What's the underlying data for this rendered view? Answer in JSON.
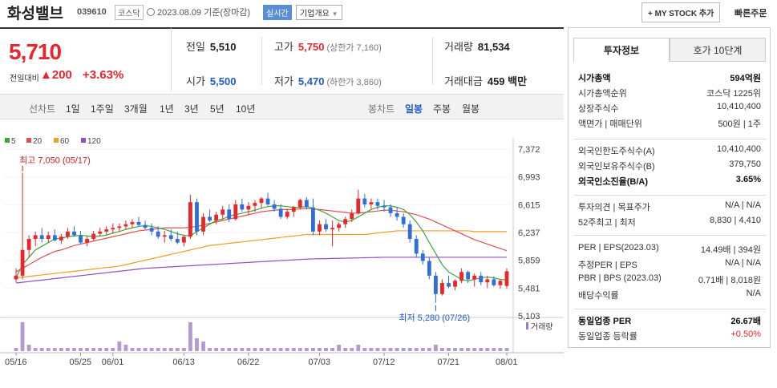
{
  "header": {
    "name": "화성밸브",
    "code": "039610",
    "market": "코스닥",
    "date_text": "2023.08.09 기준(장마감)",
    "realtime": "실시간",
    "overview": "기업개요",
    "mystock": "+ MY STOCK 추가",
    "fast_order": "빠른주문"
  },
  "price": {
    "current": "5,710",
    "change_label": "전일대비",
    "change": "▲200",
    "change_pct": "+3.63%"
  },
  "stats": {
    "prev_label": "전일",
    "prev": "5,510",
    "high_label": "고가",
    "high": "5,750",
    "high_limit": "(상한가 7,160)",
    "volume_label": "거래량",
    "volume": "81,534",
    "open_label": "시가",
    "open": "5,500",
    "low_label": "저가",
    "low": "5,470",
    "low_limit": "(하한가 3,860)",
    "amount_label": "거래대금",
    "amount": "459 백만"
  },
  "toolbar": {
    "line_chart": "선차트",
    "ranges": [
      "1일",
      "1주일",
      "3개월",
      "1년",
      "3년",
      "5년",
      "10년"
    ],
    "candle_chart": "봉차트",
    "periods": [
      "일봉",
      "주봉",
      "월봉"
    ]
  },
  "chart_data": {
    "type": "candlestick",
    "legend": [
      "5",
      "20",
      "60",
      "120"
    ],
    "legend_colors": [
      "#38a838",
      "#e05050",
      "#f0a020",
      "#9050c0"
    ],
    "y_ticks": [
      "7,372",
      "6,993",
      "6,615",
      "6,237",
      "5,859",
      "5,481",
      "5,103"
    ],
    "ylim": [
      5103,
      7372
    ],
    "x_ticks": [
      "05/16",
      "05/25",
      "06/01",
      "06/13",
      "06/22",
      "07/03",
      "07/12",
      "07/21",
      "08/01"
    ],
    "high_annotation": "최고 7,050 (05/17)",
    "low_annotation": "최저 5,280 (07/26)",
    "volume_label": "거래량",
    "candles": [
      [
        5600,
        5750,
        5560,
        5650
      ],
      [
        5650,
        7050,
        5600,
        6000
      ],
      [
        6000,
        6200,
        5900,
        6150
      ],
      [
        6150,
        6250,
        6050,
        6200
      ],
      [
        6200,
        6300,
        6100,
        6150
      ],
      [
        6150,
        6250,
        6100,
        6200
      ],
      [
        6200,
        6280,
        6120,
        6130
      ],
      [
        6130,
        6220,
        6080,
        6180
      ],
      [
        6180,
        6300,
        6150,
        6250
      ],
      [
        6250,
        6320,
        6180,
        6200
      ],
      [
        6200,
        6260,
        6080,
        6100
      ],
      [
        6100,
        6180,
        6050,
        6150
      ],
      [
        6150,
        6260,
        6120,
        6220
      ],
      [
        6220,
        6300,
        6180,
        6250
      ],
      [
        6250,
        6320,
        6200,
        6280
      ],
      [
        6280,
        6360,
        6220,
        6300
      ],
      [
        6300,
        6360,
        6250,
        6320
      ],
      [
        6320,
        6400,
        6280,
        6350
      ],
      [
        6350,
        6420,
        6300,
        6380
      ],
      [
        6380,
        6450,
        6320,
        6340
      ],
      [
        6340,
        6400,
        6280,
        6300
      ],
      [
        6300,
        6360,
        6200,
        6250
      ],
      [
        6250,
        6320,
        6150,
        6180
      ],
      [
        6180,
        6260,
        6100,
        6200
      ],
      [
        6200,
        6280,
        6120,
        6150
      ],
      [
        6150,
        6250,
        6080,
        6100
      ],
      [
        6100,
        6200,
        6050,
        6180
      ],
      [
        6180,
        6750,
        6150,
        6650
      ],
      [
        6650,
        6700,
        6200,
        6250
      ],
      [
        6250,
        6500,
        6200,
        6450
      ],
      [
        6450,
        6550,
        6380,
        6400
      ],
      [
        6400,
        6520,
        6350,
        6480
      ],
      [
        6480,
        6600,
        6420,
        6550
      ],
      [
        6550,
        6620,
        6380,
        6420
      ],
      [
        6420,
        6680,
        6400,
        6620
      ],
      [
        6620,
        6700,
        6520,
        6550
      ],
      [
        6550,
        6650,
        6480,
        6600
      ],
      [
        6600,
        6680,
        6520,
        6640
      ],
      [
        6640,
        6720,
        6560,
        6700
      ],
      [
        6700,
        6780,
        6600,
        6620
      ],
      [
        6620,
        6680,
        6520,
        6560
      ],
      [
        6560,
        6620,
        6420,
        6450
      ],
      [
        6450,
        6560,
        6420,
        6520
      ],
      [
        6520,
        6600,
        6450,
        6580
      ],
      [
        6580,
        6700,
        6550,
        6680
      ],
      [
        6680,
        6720,
        6550,
        6580
      ],
      [
        6580,
        6700,
        6200,
        6250
      ],
      [
        6250,
        6400,
        6200,
        6350
      ],
      [
        6350,
        6420,
        6250,
        6280
      ],
      [
        6280,
        6400,
        6050,
        6300
      ],
      [
        6300,
        6380,
        6250,
        6350
      ],
      [
        6350,
        6450,
        6300,
        6420
      ],
      [
        6420,
        6550,
        6380,
        6500
      ],
      [
        6500,
        6820,
        6480,
        6700
      ],
      [
        6700,
        6760,
        6580,
        6620
      ],
      [
        6620,
        6700,
        6560,
        6650
      ],
      [
        6650,
        6700,
        6550,
        6600
      ],
      [
        6600,
        6680,
        6520,
        6580
      ],
      [
        6580,
        6620,
        6450,
        6500
      ],
      [
        6500,
        6580,
        6400,
        6450
      ],
      [
        6450,
        6500,
        6300,
        6350
      ],
      [
        6350,
        6400,
        6100,
        6150
      ],
      [
        6150,
        6200,
        5900,
        5950
      ],
      [
        5950,
        6000,
        5800,
        5850
      ],
      [
        5850,
        5900,
        5600,
        5650
      ],
      [
        5650,
        5700,
        5280,
        5400
      ],
      [
        5400,
        5600,
        5380,
        5550
      ],
      [
        5550,
        5650,
        5480,
        5500
      ],
      [
        5500,
        5600,
        5450,
        5580
      ],
      [
        5580,
        5750,
        5550,
        5700
      ],
      [
        5700,
        5720,
        5550,
        5600
      ],
      [
        5600,
        5680,
        5500,
        5650
      ],
      [
        5650,
        5700,
        5520,
        5560
      ],
      [
        5560,
        5650,
        5480,
        5600
      ],
      [
        5600,
        5640,
        5500,
        5520
      ],
      [
        5520,
        5600,
        5470,
        5580
      ],
      [
        5510,
        5750,
        5470,
        5710
      ]
    ],
    "ma": {
      "5": [
        5620,
        5800,
        5900,
        6000,
        6050,
        6100,
        6150,
        6160,
        6180,
        6190,
        6200,
        6190,
        6180,
        6190,
        6200,
        6230,
        6250,
        6280,
        6300,
        6320,
        6330,
        6320,
        6300,
        6280,
        6250,
        6220,
        6200,
        6190,
        6250,
        6300,
        6350,
        6400,
        6420,
        6460,
        6480,
        6500,
        6520,
        6540,
        6570,
        6590,
        6600,
        6600,
        6590,
        6580,
        6580,
        6590,
        6570,
        6540,
        6500,
        6450,
        6400,
        6380,
        6400,
        6450,
        6500,
        6550,
        6580,
        6600,
        6600,
        6580,
        6550,
        6480,
        6380,
        6260,
        6100,
        5950,
        5800,
        5700,
        5650,
        5600,
        5580,
        5600,
        5620,
        5630,
        5620,
        5600,
        5590
      ],
      "20": [
        5700,
        5750,
        5800,
        5850,
        5900,
        5940,
        5980,
        6000,
        6030,
        6060,
        6080,
        6100,
        6120,
        6140,
        6160,
        6180,
        6200,
        6220,
        6240,
        6260,
        6270,
        6280,
        6290,
        6300,
        6300,
        6300,
        6300,
        6310,
        6320,
        6340,
        6360,
        6380,
        6400,
        6420,
        6440,
        6460,
        6480,
        6500,
        6520,
        6530,
        6540,
        6550,
        6550,
        6550,
        6560,
        6560,
        6560,
        6550,
        6540,
        6530,
        6520,
        6510,
        6500,
        6500,
        6510,
        6520,
        6530,
        6540,
        6540,
        6530,
        6520,
        6500,
        6480,
        6450,
        6420,
        6380,
        6340,
        6300,
        6260,
        6220,
        6180,
        6140,
        6110,
        6080,
        6050,
        6020,
        5990
      ],
      "60": [
        5620,
        5630,
        5640,
        5650,
        5660,
        5670,
        5680,
        5690,
        5700,
        5710,
        5720,
        5730,
        5740,
        5750,
        5760,
        5770,
        5780,
        5800,
        5820,
        5840,
        5860,
        5880,
        5900,
        5920,
        5940,
        5960,
        5980,
        6000,
        6020,
        6040,
        6060,
        6070,
        6080,
        6090,
        6100,
        6110,
        6120,
        6130,
        6140,
        6150,
        6160,
        6170,
        6180,
        6190,
        6200,
        6210,
        6210,
        6210,
        6210,
        6210,
        6210,
        6210,
        6210,
        6210,
        6210,
        6220,
        6230,
        6240,
        6250,
        6260,
        6260,
        6260,
        6260,
        6260,
        6260,
        6260,
        6260,
        6260,
        6260,
        6260,
        6260,
        6250,
        6250,
        6250,
        6250,
        6250,
        6250
      ],
      "120": [
        5550,
        5560,
        5570,
        5580,
        5590,
        5600,
        5610,
        5620,
        5630,
        5640,
        5650,
        5660,
        5670,
        5680,
        5690,
        5700,
        5710,
        5720,
        5730,
        5740,
        5750,
        5755,
        5760,
        5765,
        5770,
        5775,
        5780,
        5785,
        5790,
        5795,
        5800,
        5805,
        5810,
        5815,
        5820,
        5825,
        5830,
        5835,
        5840,
        5845,
        5850,
        5855,
        5860,
        5865,
        5870,
        5875,
        5878,
        5880,
        5882,
        5884,
        5886,
        5888,
        5890,
        5892,
        5894,
        5896,
        5898,
        5900,
        5900,
        5900,
        5900,
        5900,
        5900,
        5900,
        5900,
        5900,
        5900,
        5900,
        5900,
        5900,
        5900,
        5900,
        5900,
        5900,
        5900,
        5900,
        5900
      ]
    },
    "volume": [
      1,
      9,
      2,
      1,
      1,
      1,
      1,
      1,
      1,
      1,
      1,
      1,
      1,
      1,
      1,
      1,
      3,
      2,
      1,
      1,
      1,
      1,
      1,
      1,
      1,
      1,
      1,
      9,
      4,
      3,
      1,
      1,
      1,
      1,
      1,
      1,
      1,
      1,
      1,
      1,
      1,
      1,
      1,
      1,
      1,
      1,
      1,
      1,
      1,
      1,
      2,
      1,
      1,
      2,
      1,
      1,
      1,
      1,
      1,
      1,
      1,
      1,
      1,
      1,
      1,
      2,
      1,
      1,
      1,
      1,
      1,
      1,
      1,
      1,
      1,
      1,
      1
    ]
  },
  "side": {
    "tab_info": "투자정보",
    "tab_hoga": "호가 10단계",
    "rows1": [
      {
        "k": "시가총액",
        "v": "594억원",
        "bold": true
      },
      {
        "k": "시가총액순위",
        "v": "코스닥 1225위"
      },
      {
        "k": "상장주식수",
        "v": "10,410,400"
      },
      {
        "k": "액면가 | 매매단위",
        "v": "500원 | 1주"
      }
    ],
    "rows2": [
      {
        "k": "외국인한도주식수(A)",
        "v": "10,410,400"
      },
      {
        "k": "외국인보유주식수(B)",
        "v": "379,750"
      },
      {
        "k": "외국인소진율(B/A)",
        "v": "3.65%",
        "bold": true
      }
    ],
    "rows3": [
      {
        "k": "투자의견 | 목표주가",
        "v": "N/A | N/A"
      },
      {
        "k": "52주최고 | 최저",
        "v": "8,830 | 4,410"
      }
    ],
    "rows4": [
      {
        "k": "PER | EPS(2023.03)",
        "v": "14.49배 | 394원"
      },
      {
        "k": "추정PER | EPS",
        "v": "N/A | N/A"
      },
      {
        "k": "PBR | BPS (2023.03)",
        "v": "0.71배 | 8,018원"
      },
      {
        "k": "배당수익률",
        "v": "N/A"
      }
    ],
    "rows5": [
      {
        "k": "동일업종 PER",
        "v": "26.67배",
        "bold": true
      },
      {
        "k": "동일업종 등락률",
        "v": "+0.50%",
        "red": true
      }
    ]
  }
}
